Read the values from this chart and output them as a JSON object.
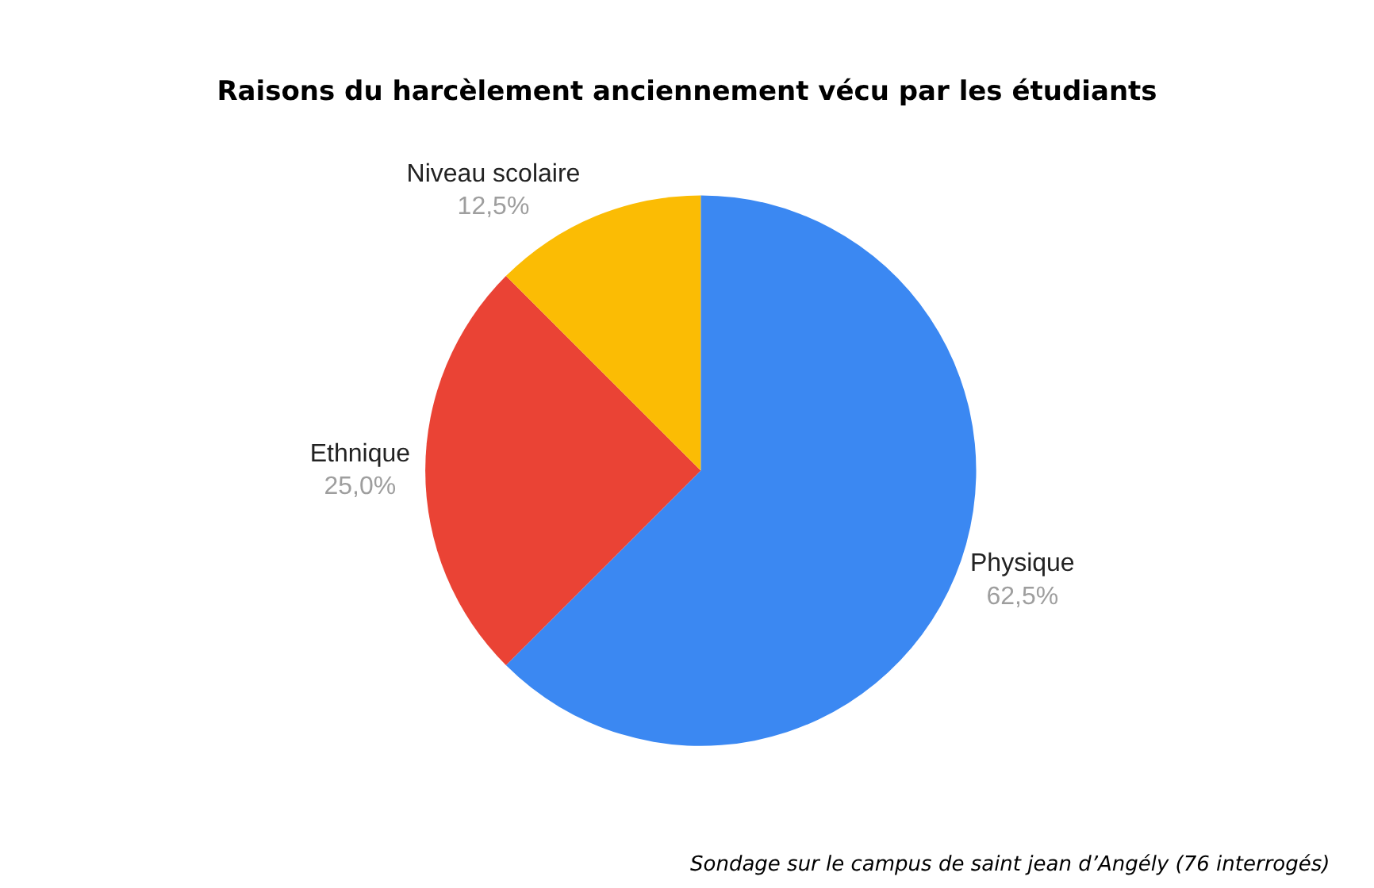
{
  "chart_data": {
    "type": "pie",
    "title": "Raisons du harcèlement anciennement vécu par les étudiants",
    "categories": [
      "Physique",
      "Ethnique",
      "Niveau scolaire"
    ],
    "values": [
      62.5,
      25.0,
      12.5
    ],
    "colors": [
      "#3b88f2",
      "#ea4335",
      "#fbbc04"
    ],
    "value_labels": [
      "62,5%",
      "25,0%",
      "12,5%"
    ],
    "legend": false,
    "annotations": [
      "Sondage sur le campus de saint jean d’Angély (76 interrogés)"
    ]
  }
}
